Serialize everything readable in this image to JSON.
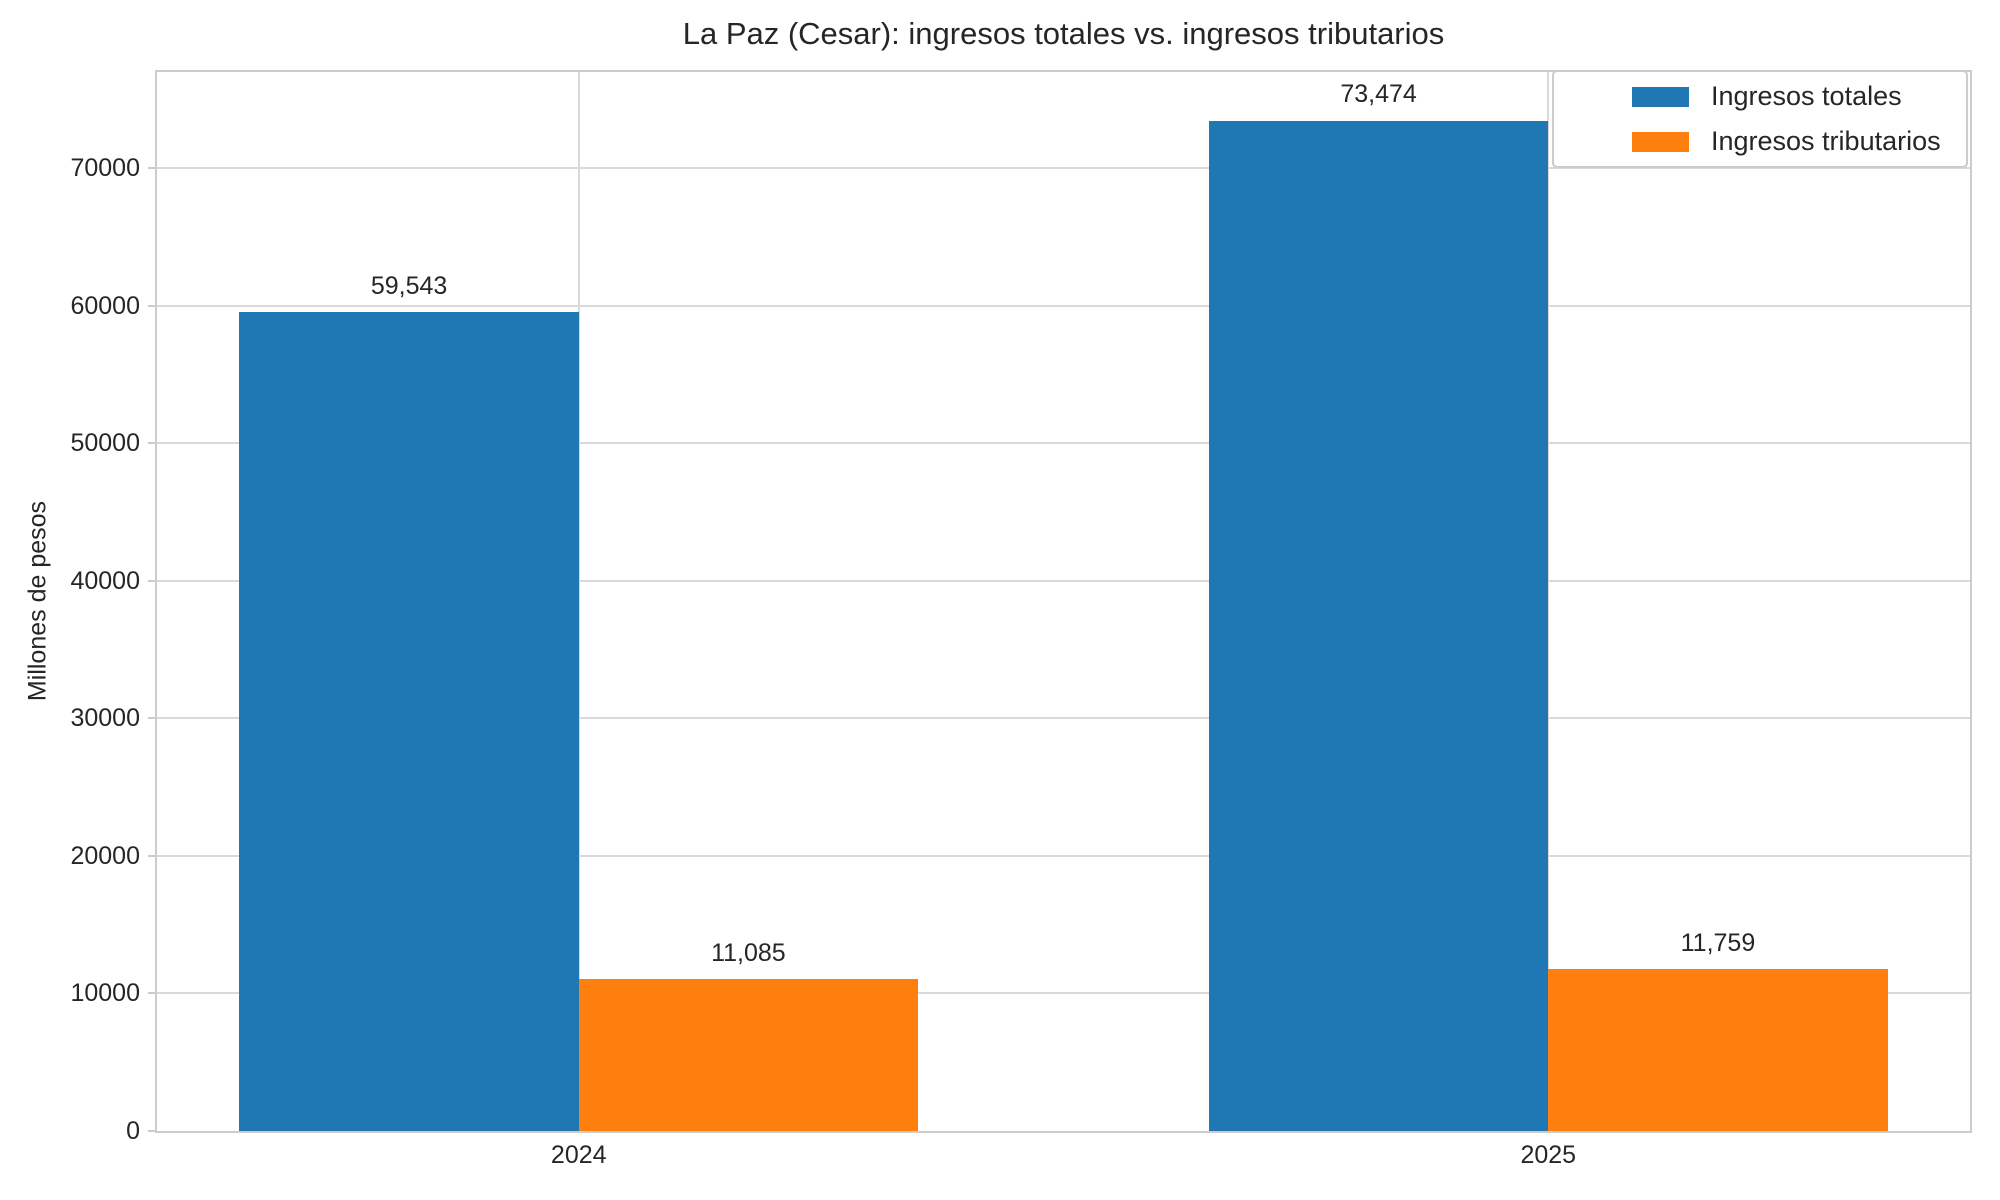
{
  "title": "La Paz (Cesar): ingresos totales vs. ingresos tributarios",
  "chart_data": {
    "type": "bar",
    "title": "La Paz (Cesar): ingresos totales vs. ingresos tributarios",
    "categories": [
      "2024",
      "2025"
    ],
    "series": [
      {
        "name": "Ingresos totales",
        "color": "#1f77b4",
        "values": [
          59543,
          73474
        ],
        "value_labels": [
          "59,543",
          "73,474"
        ]
      },
      {
        "name": "Ingresos tributarios",
        "color": "#ff7f0e",
        "values": [
          11085,
          11759
        ],
        "value_labels": [
          "11,085",
          "11,759"
        ]
      }
    ],
    "xlabel": "",
    "ylabel": "Millones de pesos",
    "ylim": [
      0,
      77000
    ],
    "yticks": [
      0,
      10000,
      20000,
      30000,
      40000,
      50000,
      60000,
      70000
    ],
    "grid": "both",
    "legend_position": "upper right",
    "bar_width_units": 0.35,
    "xlim_units": [
      -0.435,
      1.435
    ]
  },
  "colors": {
    "series_blue": "#1f77b4",
    "series_orange": "#ff7f0e",
    "gridline": "#d9d9d9",
    "spine": "#cccccc",
    "text": "#262626",
    "background": "#ffffff"
  }
}
